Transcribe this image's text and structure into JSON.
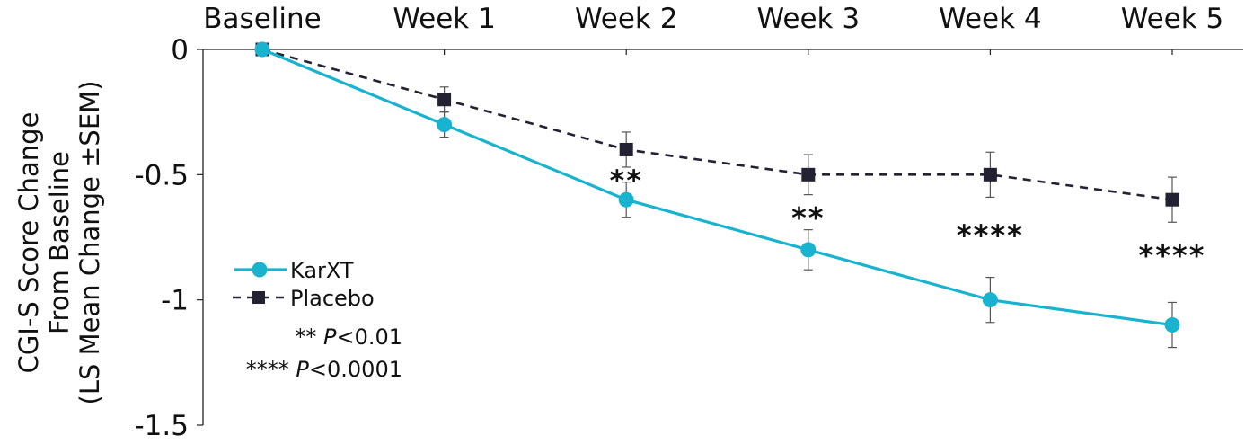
{
  "chart_data": {
    "type": "line",
    "categories": [
      "Baseline",
      "Week 1",
      "Week 2",
      "Week 3",
      "Week 4",
      "Week 5"
    ],
    "ylabel_lines": [
      "CGI-S Score Change",
      "From Baseline",
      "(LS Mean Change ±SEM)"
    ],
    "ylim": [
      -1.5,
      0
    ],
    "yticks": [
      0,
      -0.5,
      -1,
      -1.5
    ],
    "ytick_labels": [
      "0",
      "-0.5",
      "-1",
      "-1.5"
    ],
    "series": [
      {
        "name": "KarXT",
        "color": "#1ab3cf",
        "line_style": "solid",
        "marker": "circle",
        "values": [
          0,
          -0.3,
          -0.6,
          -0.8,
          -1.0,
          -1.1
        ],
        "sem": [
          0,
          0.05,
          0.07,
          0.08,
          0.09,
          0.09
        ]
      },
      {
        "name": "Placebo",
        "color": "#222233",
        "line_style": "dashed",
        "marker": "square",
        "values": [
          0,
          -0.2,
          -0.4,
          -0.5,
          -0.5,
          -0.6
        ],
        "sem": [
          0,
          0.05,
          0.07,
          0.08,
          0.09,
          0.09
        ]
      }
    ],
    "significance": [
      "",
      "",
      "**",
      "**",
      "****",
      "****"
    ],
    "significance_values": [
      null,
      null,
      -0.52,
      -0.67,
      -0.74,
      -0.82
    ],
    "legend": {
      "placement": "lower-left",
      "notes": [
        {
          "stars": "**",
          "p": "P",
          "rest": "<0.01"
        },
        {
          "stars": "****",
          "p": "P",
          "rest": "<0.0001"
        }
      ]
    },
    "grid": false
  }
}
